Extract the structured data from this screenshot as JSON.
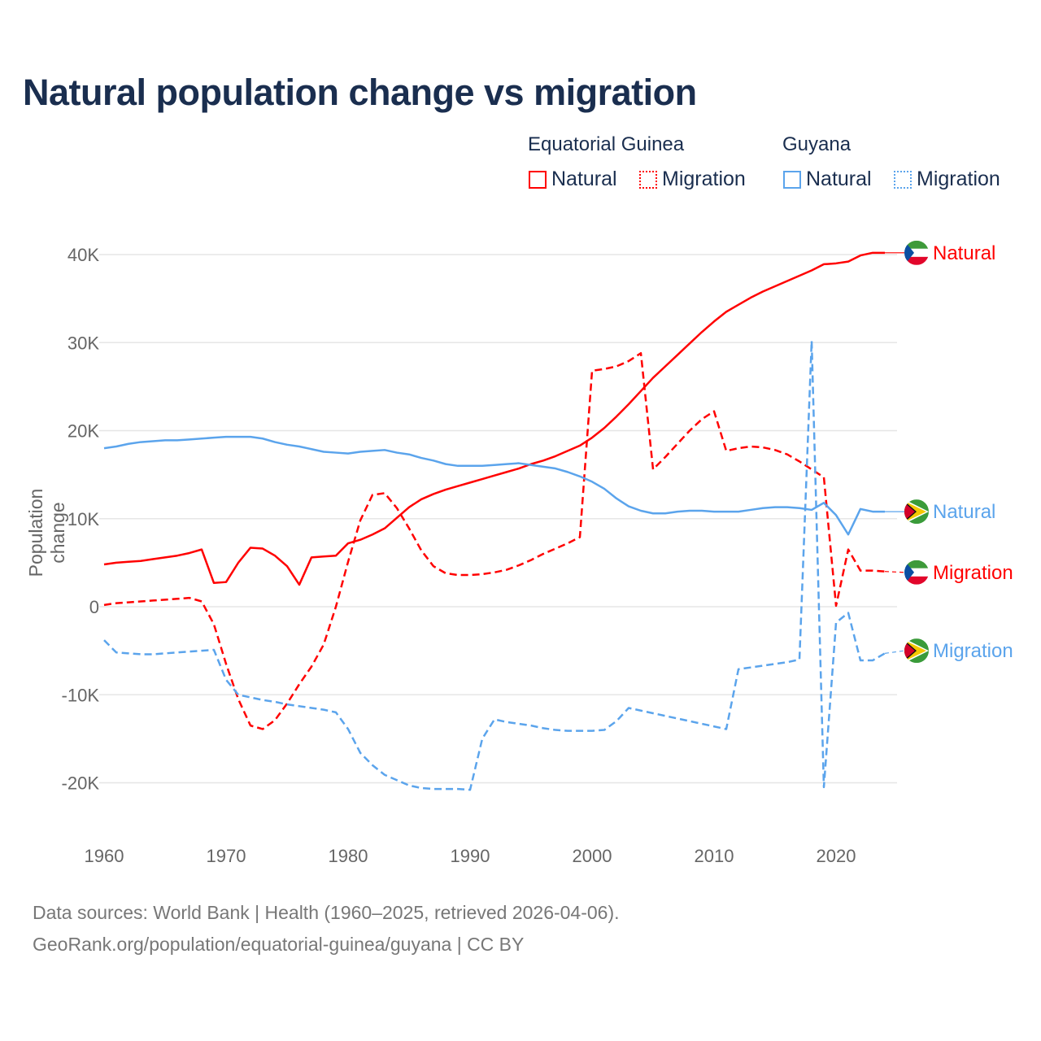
{
  "chart_data": {
    "type": "line",
    "title": "Natural population change vs migration",
    "xlabel": "",
    "ylabel": "Population change",
    "xlim": [
      1960,
      2025
    ],
    "ylim": [
      -25000,
      42000
    ],
    "x_ticks": [
      1960,
      1970,
      1980,
      1990,
      2000,
      2010,
      2020
    ],
    "y_ticks": [
      -20000,
      -10000,
      0,
      10000,
      20000,
      30000,
      40000
    ],
    "y_tick_labels": [
      "-20K",
      "-10K",
      "0",
      "10K",
      "20K",
      "30K",
      "40K"
    ],
    "grid": true,
    "legend": {
      "placement": "top-right",
      "groups": [
        {
          "name": "Equatorial Guinea",
          "items": [
            "Natural",
            "Migration"
          ]
        },
        {
          "name": "Guyana",
          "items": [
            "Natural",
            "Migration"
          ]
        }
      ]
    },
    "x_start": 1960,
    "series": [
      {
        "name": "Natural",
        "country": "Equatorial Guinea",
        "color": "#ff0000",
        "dashed": false,
        "end_label": "Natural",
        "values": [
          4.8,
          5.0,
          5.1,
          5.2,
          5.4,
          5.6,
          5.8,
          6.1,
          6.5,
          2.7,
          2.8,
          5.0,
          6.7,
          6.6,
          5.8,
          4.6,
          2.5,
          5.6,
          5.7,
          5.8,
          7.2,
          7.6,
          8.2,
          8.9,
          10.1,
          11.3,
          12.2,
          12.8,
          13.3,
          13.7,
          14.1,
          14.5,
          14.9,
          15.3,
          15.7,
          16.2,
          16.6,
          17.1,
          17.7,
          18.3,
          19.2,
          20.3,
          21.6,
          23.0,
          24.5,
          26.0,
          27.3,
          28.6,
          29.9,
          31.2,
          32.4,
          33.5,
          34.3,
          35.1,
          35.8,
          36.4,
          37.0,
          37.6,
          38.2,
          38.9,
          39.0,
          39.2,
          39.9,
          40.2,
          40.2,
          40.2
        ]
      },
      {
        "name": "Migration",
        "country": "Equatorial Guinea",
        "color": "#ff0000",
        "dashed": true,
        "end_label": "Migration",
        "values": [
          0.2,
          0.4,
          0.5,
          0.6,
          0.7,
          0.8,
          0.9,
          1.0,
          0.6,
          -2.0,
          -6.5,
          -10.5,
          -13.5,
          -13.9,
          -12.9,
          -11.0,
          -8.8,
          -6.8,
          -4.3,
          0.0,
          5.1,
          9.8,
          12.7,
          12.9,
          11.2,
          8.9,
          6.4,
          4.6,
          3.8,
          3.6,
          3.6,
          3.7,
          3.9,
          4.2,
          4.7,
          5.3,
          6.0,
          6.6,
          7.2,
          7.9,
          26.8,
          27.0,
          27.3,
          27.9,
          28.8,
          15.6,
          17.0,
          18.5,
          20.0,
          21.3,
          22.2,
          17.7,
          18.0,
          18.2,
          18.1,
          17.8,
          17.3,
          16.5,
          15.6,
          14.7,
          0.1,
          6.5,
          4.1,
          4.1,
          4.0,
          3.9
        ]
      },
      {
        "name": "Natural",
        "country": "Guyana",
        "color": "#5ba4ec",
        "dashed": false,
        "end_label": "Natural",
        "values": [
          18.0,
          18.2,
          18.5,
          18.7,
          18.8,
          18.9,
          18.9,
          19.0,
          19.1,
          19.2,
          19.3,
          19.3,
          19.3,
          19.1,
          18.7,
          18.4,
          18.2,
          17.9,
          17.6,
          17.5,
          17.4,
          17.6,
          17.7,
          17.8,
          17.5,
          17.3,
          16.9,
          16.6,
          16.2,
          16.0,
          16.0,
          16.0,
          16.1,
          16.2,
          16.3,
          16.1,
          15.9,
          15.7,
          15.3,
          14.8,
          14.2,
          13.4,
          12.3,
          11.4,
          10.9,
          10.6,
          10.6,
          10.8,
          10.9,
          10.9,
          10.8,
          10.8,
          10.8,
          11.0,
          11.2,
          11.3,
          11.3,
          11.2,
          11.0,
          11.8,
          10.4,
          8.2,
          11.1,
          10.8,
          10.8,
          10.8
        ]
      },
      {
        "name": "Migration",
        "country": "Guyana",
        "color": "#5ba4ec",
        "dashed": true,
        "end_label": "Migration",
        "values": [
          -3.8,
          -5.2,
          -5.3,
          -5.4,
          -5.4,
          -5.3,
          -5.2,
          -5.1,
          -5.0,
          -4.9,
          -8.3,
          -10.0,
          -10.3,
          -10.6,
          -10.8,
          -11.1,
          -11.3,
          -11.5,
          -11.7,
          -12.0,
          -13.9,
          -16.6,
          -18.0,
          -19.1,
          -19.7,
          -20.3,
          -20.6,
          -20.7,
          -20.7,
          -20.7,
          -20.8,
          -15.0,
          -12.8,
          -13.1,
          -13.3,
          -13.5,
          -13.8,
          -14.0,
          -14.1,
          -14.1,
          -14.1,
          -14.0,
          -13.0,
          -11.5,
          -11.8,
          -12.1,
          -12.4,
          -12.7,
          -13.0,
          -13.3,
          -13.6,
          -13.9,
          -7.1,
          -6.9,
          -6.7,
          -6.5,
          -6.3,
          -6.0,
          30.2,
          -20.5,
          -1.8,
          -0.7,
          -6.1,
          -6.1,
          -5.3,
          -5.0
        ]
      }
    ],
    "value_unit": "thousands"
  },
  "legend": {
    "group1": "Equatorial Guinea",
    "group2": "Guyana",
    "natural": "Natural",
    "migration": "Migration"
  },
  "footer": {
    "line1": "Data sources: World Bank | Health (1960–2025, retrieved 2026-04-06).",
    "line2": "GeoRank.org/population/equatorial-guinea/guyana | CC BY"
  }
}
